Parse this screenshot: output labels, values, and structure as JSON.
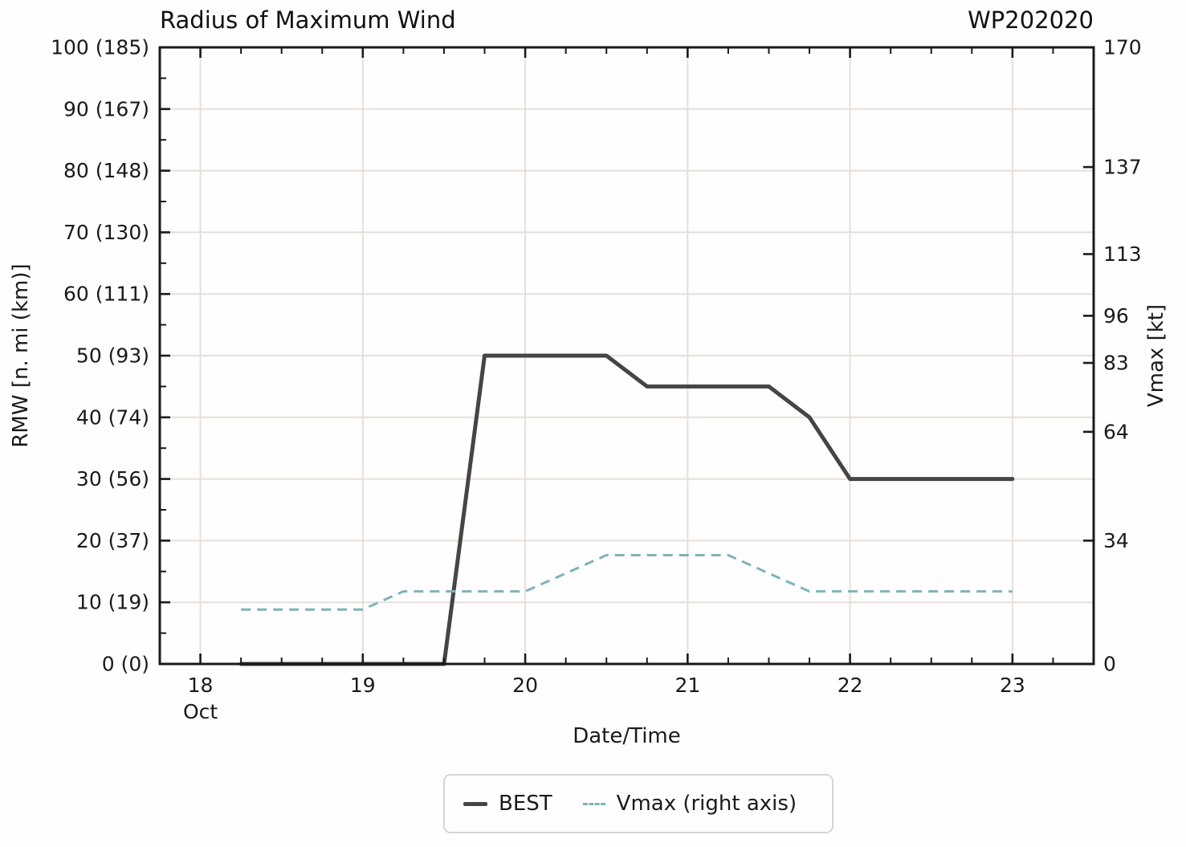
{
  "chart_data": {
    "type": "line",
    "title": "Radius of Maximum Wind",
    "storm_id": "WP202020",
    "xlabel": "Date/Time",
    "x_month_label": "Oct",
    "ylabel_left": "RMW [n. mi (km)]",
    "ylabel_right": "Vmax [kt]",
    "xlim": [
      17.75,
      23.5
    ],
    "ylim_left": [
      0,
      100
    ],
    "ylim_right": [
      0,
      170
    ],
    "x_major_ticks": [
      18,
      19,
      20,
      21,
      22,
      23
    ],
    "x_major_tick_labels": [
      "18",
      "19",
      "20",
      "21",
      "22",
      "23"
    ],
    "x_minor_tick_step": 0.25,
    "y_left_major_ticks": [
      {
        "value": 0,
        "label": "0 (0)"
      },
      {
        "value": 10,
        "label": "10 (19)"
      },
      {
        "value": 20,
        "label": "20 (37)"
      },
      {
        "value": 30,
        "label": "30 (56)"
      },
      {
        "value": 40,
        "label": "40 (74)"
      },
      {
        "value": 50,
        "label": "50 (93)"
      },
      {
        "value": 60,
        "label": "60 (111)"
      },
      {
        "value": 70,
        "label": "70 (130)"
      },
      {
        "value": 80,
        "label": "80 (148)"
      },
      {
        "value": 90,
        "label": "90 (167)"
      },
      {
        "value": 100,
        "label": "100 (185)"
      }
    ],
    "y_left_minor_ticks": [
      5,
      15,
      25,
      35,
      45,
      55,
      65,
      75,
      85,
      95
    ],
    "y_right_major_ticks": [
      0,
      34,
      64,
      83,
      96,
      113,
      137,
      170
    ],
    "grid": true,
    "legend_position": "bottom-center",
    "series": [
      {
        "name": "BEST",
        "axis": "left",
        "line_style": "solid",
        "color": "#454547",
        "x": [
          18.25,
          18.5,
          18.75,
          19.0,
          19.25,
          19.5,
          19.75,
          20.0,
          20.25,
          20.5,
          20.75,
          21.0,
          21.25,
          21.5,
          21.75,
          22.0,
          22.25,
          22.5,
          22.75,
          23.0
        ],
        "y": [
          0,
          0,
          0,
          0,
          0,
          0,
          50,
          50,
          50,
          50,
          45,
          45,
          45,
          45,
          40,
          30,
          30,
          30,
          30,
          30
        ]
      },
      {
        "name": "Vmax (right axis)",
        "axis": "right",
        "line_style": "dashed",
        "color": "#7fb2bc",
        "x": [
          18.25,
          18.5,
          18.75,
          19.0,
          19.25,
          19.5,
          19.75,
          20.0,
          20.25,
          20.5,
          20.75,
          21.0,
          21.25,
          21.5,
          21.75,
          22.0,
          22.25,
          22.5,
          22.75,
          23.0
        ],
        "y": [
          15,
          15,
          15,
          15,
          20,
          20,
          20,
          20,
          25,
          30,
          30,
          30,
          30,
          25,
          20,
          20,
          20,
          20,
          20,
          20
        ]
      }
    ],
    "colors": {
      "background": "#fefefe",
      "grid": "#e7dfd8",
      "spine": "#1a1a1a",
      "text": "#1a1a1a",
      "best_line": "#454547",
      "vmax_line": "#7fb2bc"
    }
  }
}
